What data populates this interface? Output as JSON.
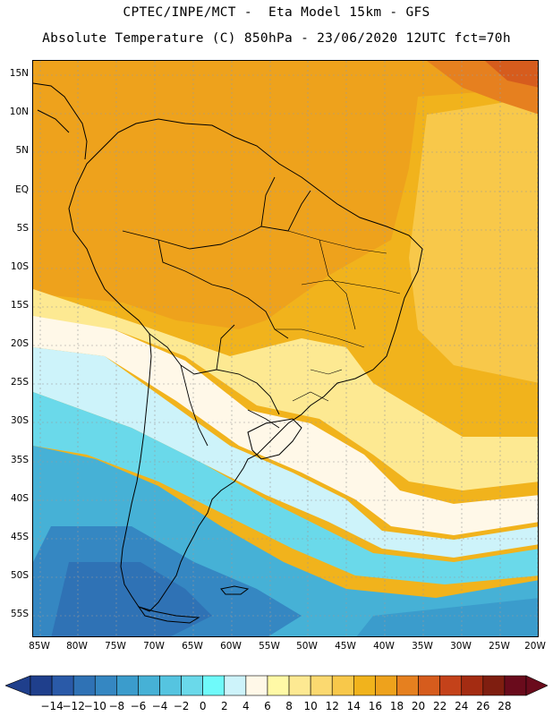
{
  "title_line1": "CPTEC/INPE/MCT -  Eta Model 15km - GFS",
  "title_line2": "Absolute Temperature (C) 850hPa - 23/06/2020 12UTC fct=70h",
  "lat_labels": [
    "15N",
    "10N",
    "5N",
    "EQ",
    "5S",
    "10S",
    "15S",
    "20S",
    "25S",
    "30S",
    "35S",
    "40S",
    "45S",
    "50S",
    "55S"
  ],
  "lon_labels": [
    "85W",
    "80W",
    "75W",
    "70W",
    "65W",
    "60W",
    "55W",
    "50W",
    "45W",
    "40W",
    "35W",
    "30W",
    "25W",
    "20W"
  ],
  "colorbar": {
    "tick_labels": [
      "-14",
      "-12",
      "-10",
      "-8",
      "-6",
      "-4",
      "-2",
      "0",
      "2",
      "4",
      "6",
      "8",
      "10",
      "12",
      "14",
      "16",
      "18",
      "20",
      "22",
      "24",
      "26",
      "28"
    ],
    "colors": [
      "#1f3f8c",
      "#2a5aa8",
      "#2f72b5",
      "#3587c2",
      "#3b9ccc",
      "#46b1d6",
      "#55c4e0",
      "#6ad9ea",
      "#6ffafa",
      "#cdf3fa",
      "#fff8e8",
      "#fff9a6",
      "#fde992",
      "#fbd970",
      "#f8c84a",
      "#f1b31c",
      "#eea21c",
      "#e6801f",
      "#d65c1d",
      "#c4421a",
      "#a42c12",
      "#7f1e10",
      "#6a0b1c"
    ]
  }
}
